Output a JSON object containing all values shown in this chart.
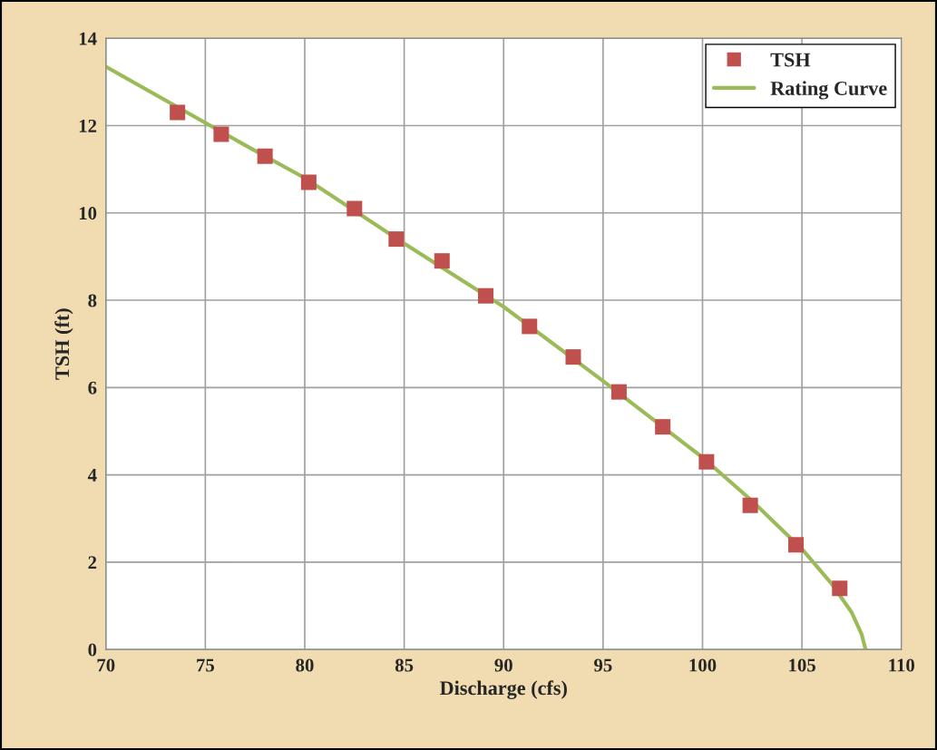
{
  "chart_data": {
    "type": "scatter",
    "xlabel": "Discharge (cfs)",
    "ylabel": "TSH (ft)",
    "xlim": [
      70,
      110
    ],
    "xticks": [
      70,
      75,
      80,
      85,
      90,
      95,
      100,
      105,
      110
    ],
    "ylim": [
      0,
      14
    ],
    "yticks": [
      0,
      2,
      4,
      6,
      8,
      10,
      12,
      14
    ],
    "grid": true,
    "legend": "top right",
    "series": [
      {
        "name": "TSH",
        "color": "#c0504d",
        "marker": "square",
        "x": [
          73.6,
          75.8,
          78.0,
          80.2,
          82.5,
          84.6,
          86.9,
          89.1,
          91.3,
          93.5,
          95.8,
          98.0,
          100.2,
          102.4,
          104.7,
          106.9
        ],
        "values": [
          12.3,
          11.8,
          11.3,
          10.7,
          10.1,
          9.4,
          8.9,
          8.1,
          7.4,
          6.7,
          5.9,
          5.1,
          4.3,
          3.3,
          2.4,
          1.4
        ]
      },
      {
        "name": "Rating Curve",
        "type": "line",
        "color": "#9bbb59",
        "marker": "none",
        "line_style": "solid",
        "x": [
          70,
          77,
          80,
          85,
          90,
          95,
          100,
          102.5,
          105,
          106.5,
          107.5,
          108,
          108.2
        ],
        "values": [
          13.35,
          11.55,
          10.8,
          9.3,
          7.85,
          6.15,
          4.4,
          3.4,
          2.3,
          1.5,
          0.85,
          0.35,
          0
        ]
      }
    ]
  }
}
